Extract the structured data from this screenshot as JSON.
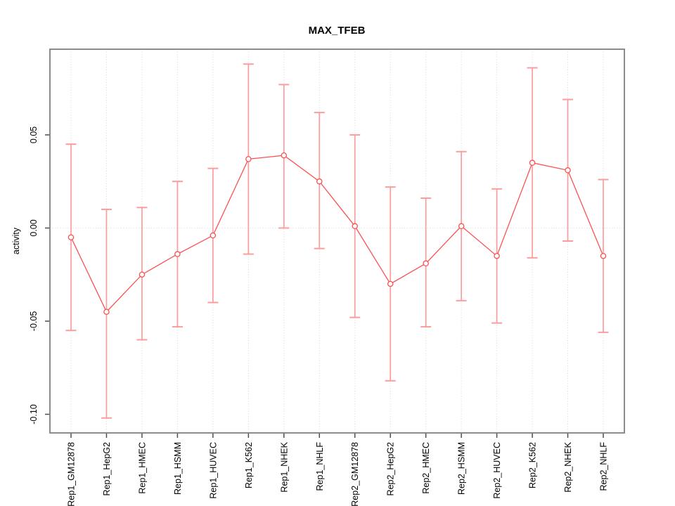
{
  "chart_data": {
    "type": "line",
    "title": "MAX_TFEB",
    "xlabel": "",
    "ylabel": "activity",
    "categories": [
      "Rep1_GM12878",
      "Rep1_HepG2",
      "Rep1_HMEC",
      "Rep1_HSMM",
      "Rep1_HUVEC",
      "Rep1_K562",
      "Rep1_NHEK",
      "Rep1_NHLF",
      "Rep2_GM12878",
      "Rep2_HepG2",
      "Rep2_HMEC",
      "Rep2_HSMM",
      "Rep2_HUVEC",
      "Rep2_K562",
      "Rep2_NHEK",
      "Rep2_NHLF"
    ],
    "series": [
      {
        "name": "activity",
        "values": [
          -0.005,
          -0.045,
          -0.025,
          -0.014,
          -0.004,
          0.037,
          0.039,
          0.025,
          0.001,
          -0.03,
          -0.019,
          0.001,
          -0.015,
          0.035,
          0.031,
          -0.015
        ],
        "error_upper": [
          0.045,
          0.01,
          0.011,
          0.025,
          0.032,
          0.088,
          0.077,
          0.062,
          0.05,
          0.022,
          0.016,
          0.041,
          0.021,
          0.086,
          0.069,
          0.026
        ],
        "error_lower": [
          -0.055,
          -0.102,
          -0.06,
          -0.053,
          -0.04,
          -0.014,
          0.0,
          -0.011,
          -0.048,
          -0.082,
          -0.053,
          -0.039,
          -0.051,
          -0.016,
          -0.007,
          -0.056
        ]
      }
    ],
    "yticks": {
      "values": [
        0.05,
        0.0,
        -0.05,
        -0.1
      ],
      "labels": [
        "0.05",
        "0.00",
        "-0.05",
        "-0.10"
      ]
    },
    "ylim": [
      -0.11,
      0.096
    ],
    "grid": {
      "vertical_dotted_per_category": true,
      "horizontal_dotted_at_zero": true
    },
    "legend": "none",
    "point_marker": "open-circle",
    "error_bars": true,
    "x_tick_label_rotation_deg": 90,
    "y_tick_label_rotation_deg": 90,
    "colors": {
      "line": "#fa5252",
      "point": "#fa5252",
      "error_bar": "#fb9d9d",
      "grid": "#dcdcdc",
      "box": "#808080",
      "tick": "#4d4d4d",
      "text": "#000000",
      "background": "#ffffff"
    }
  }
}
